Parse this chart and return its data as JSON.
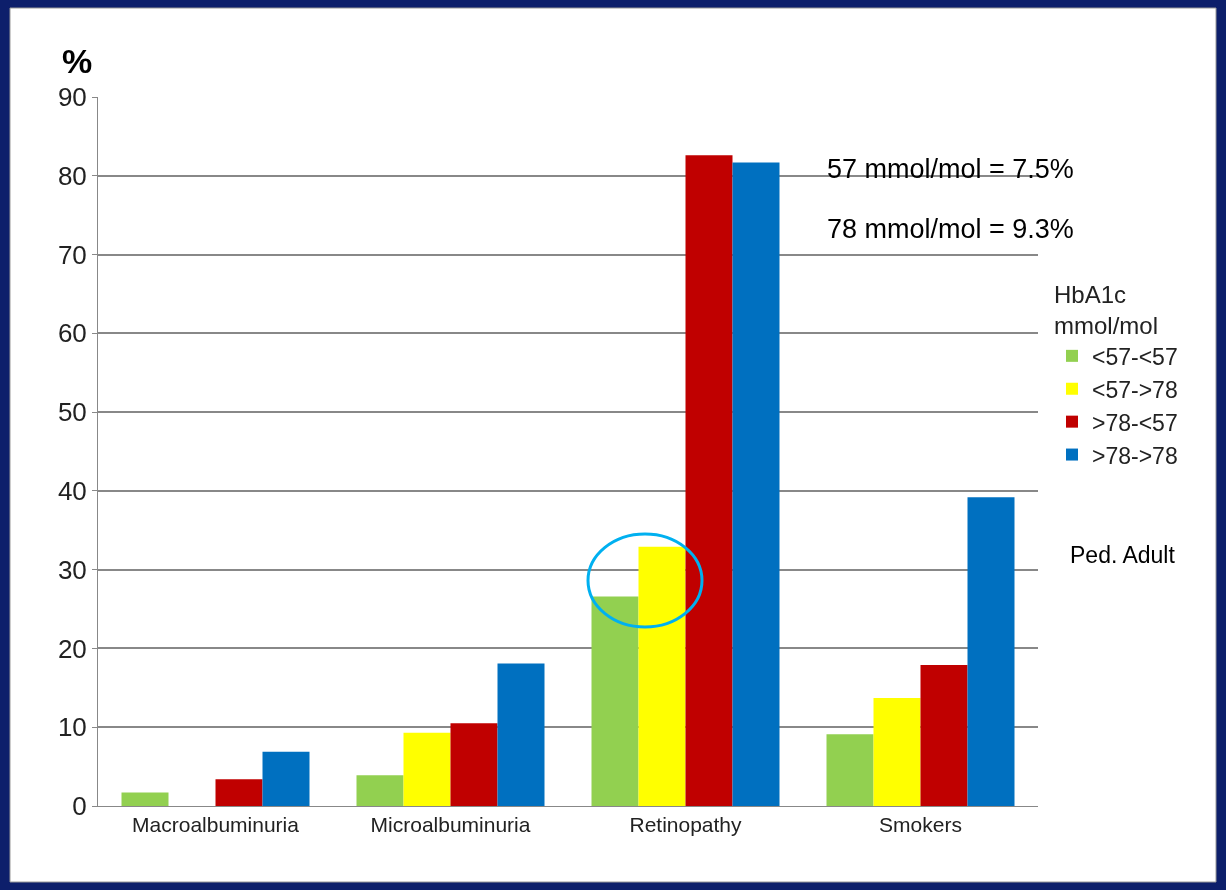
{
  "chart_data": {
    "type": "bar",
    "ylabel": "%",
    "legend_title": "HbA1c mmol/mol",
    "categories": [
      "Macroalbuminuria",
      "Microalbuminuria",
      "Retinopathy",
      "Smokers"
    ],
    "series": [
      {
        "name": "<57-<57",
        "color": "#92d050",
        "values": [
          1.7,
          3.9,
          26.6,
          9.1
        ]
      },
      {
        "name": "<57->78",
        "color": "#ffff00",
        "values": [
          0,
          9.3,
          32.9,
          13.7
        ]
      },
      {
        "name": ">78-<57",
        "color": "#c00000",
        "values": [
          3.4,
          10.5,
          82.6,
          17.9
        ]
      },
      {
        "name": ">78->78",
        "color": "#0070c0",
        "values": [
          6.9,
          18.1,
          81.7,
          39.2
        ]
      }
    ],
    "ylim": [
      0,
      90
    ],
    "yticks": [
      0,
      10,
      20,
      30,
      40,
      50,
      60,
      70,
      80,
      90
    ],
    "grid": "y",
    "legend": "right",
    "annotations": [
      "57 mmol/mol = 7.5%",
      "78 mmol/mol = 9.3%",
      "Ped. Adult"
    ]
  }
}
